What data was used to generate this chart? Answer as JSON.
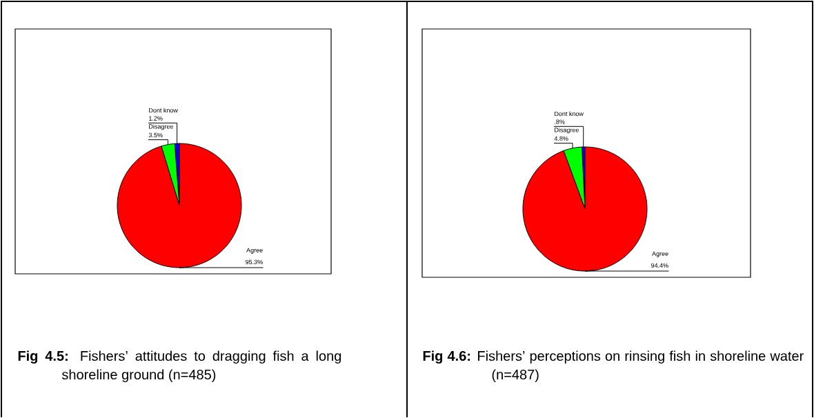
{
  "chart_data": [
    {
      "type": "pie",
      "title": "**Fig 4.5:** Fishers’ attitudes to dragging fish a long shoreline ground (n=485)",
      "categories": [
        "Dont know",
        "Disagree",
        "Agree"
      ],
      "values": [
        1.2,
        3.5,
        95.3
      ],
      "value_labels": [
        "1.2%",
        "3.5%",
        "95.3%"
      ],
      "colors": [
        "#0000ff",
        "#00ff00",
        "#ff0000"
      ]
    },
    {
      "type": "pie",
      "title": "**Fig 4.6:** Fishers’ perceptions on rinsing fish in shoreline water (n=487)",
      "categories": [
        "Dont know",
        "Disagree",
        "Agree"
      ],
      "values": [
        0.8,
        4.8,
        94.4
      ],
      "value_labels": [
        ".8%",
        "4.8%",
        "94.4%"
      ],
      "colors": [
        "#0000ff",
        "#00ff00",
        "#ff0000"
      ]
    }
  ]
}
